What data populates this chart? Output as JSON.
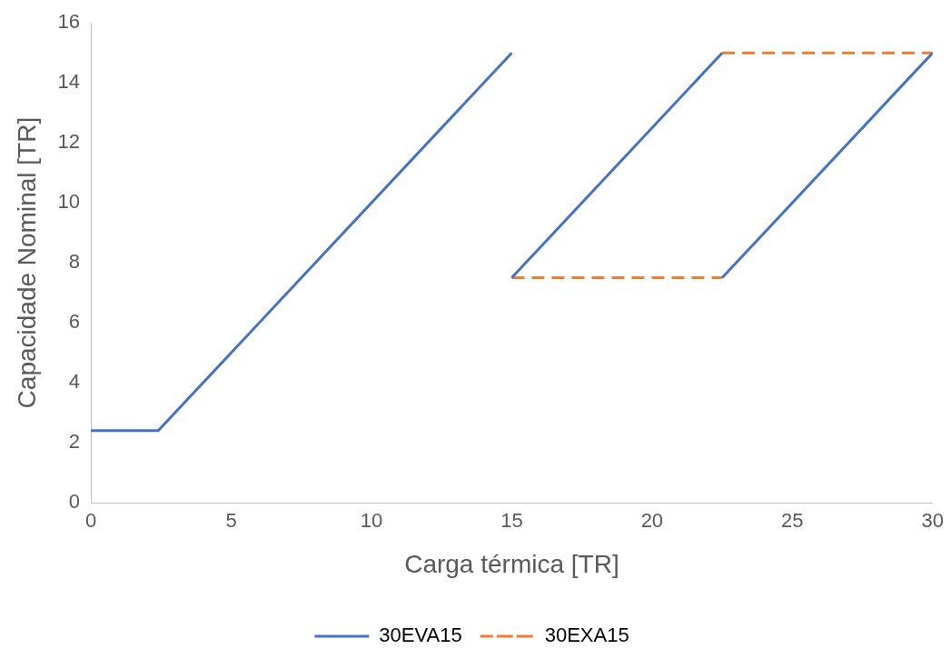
{
  "chart_data": {
    "type": "line",
    "xlabel": "Carga térmica [TR]",
    "ylabel": "Capacidade Nominal [TR]",
    "xlim": [
      0,
      30
    ],
    "xticks": [
      0,
      5,
      10,
      15,
      20,
      25,
      30
    ],
    "ylim": [
      0,
      16
    ],
    "yticks": [
      0,
      2,
      4,
      6,
      8,
      10,
      12,
      14,
      16
    ],
    "grid": false,
    "legend": "bottom",
    "marker": "none",
    "series": [
      {
        "name": "30EVA15",
        "color": "#4472c4",
        "line_style": "solid",
        "x": [
          0,
          2.4,
          15,
          null,
          15,
          22.5,
          null,
          22.5,
          30
        ],
        "values": [
          2.4,
          2.4,
          15,
          null,
          7.5,
          15,
          null,
          7.5,
          15
        ]
      },
      {
        "name": "30EXA15",
        "color": "#ed7d31",
        "line_style": "dashed",
        "x": [
          15,
          22.5,
          null,
          22.5,
          30
        ],
        "values": [
          7.5,
          7.5,
          null,
          15,
          15
        ]
      }
    ]
  }
}
